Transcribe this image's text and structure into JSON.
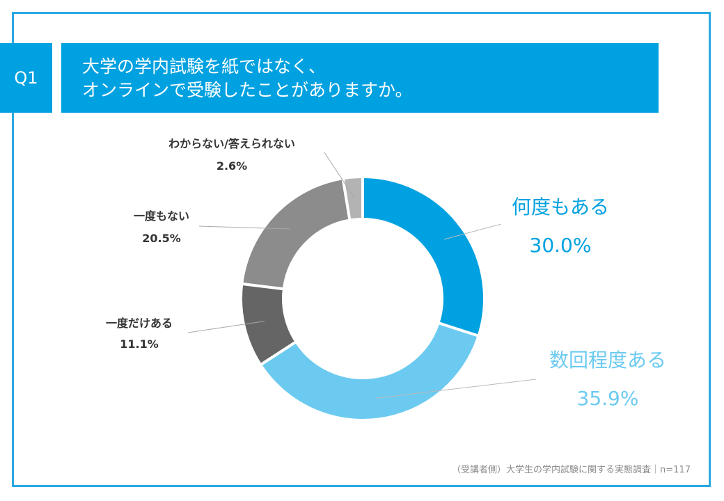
{
  "question": {
    "badge": "Q1",
    "title_line1": "大学の学内試験を紙ではなく、",
    "title_line2": "オンラインで受験したことがありますか。"
  },
  "colors": {
    "frame": "#29a9e1",
    "header": "#00a1e0",
    "slice_1": "#00a1e0",
    "slice_2": "#6ccaf0",
    "slice_3": "#656565",
    "slice_4": "#8c8c8c",
    "slice_5": "#b3b3b3"
  },
  "chart_data": {
    "type": "pie",
    "variant": "donut",
    "slices": [
      {
        "label": "何度もある",
        "value": 30.0,
        "value_text": "30.0%"
      },
      {
        "label": "数回程度ある",
        "value": 35.9,
        "value_text": "35.9%"
      },
      {
        "label": "一度だけある",
        "value": 11.1,
        "value_text": "11.1%"
      },
      {
        "label": "一度もない",
        "value": 20.5,
        "value_text": "20.5%"
      },
      {
        "label": "わからない/答えられない",
        "value": 2.6,
        "value_text": "2.6%"
      }
    ],
    "start": "top",
    "direction": "clockwise"
  },
  "footnote": "（受講者側）大学生の学内試験に関する実態調査｜n=117"
}
